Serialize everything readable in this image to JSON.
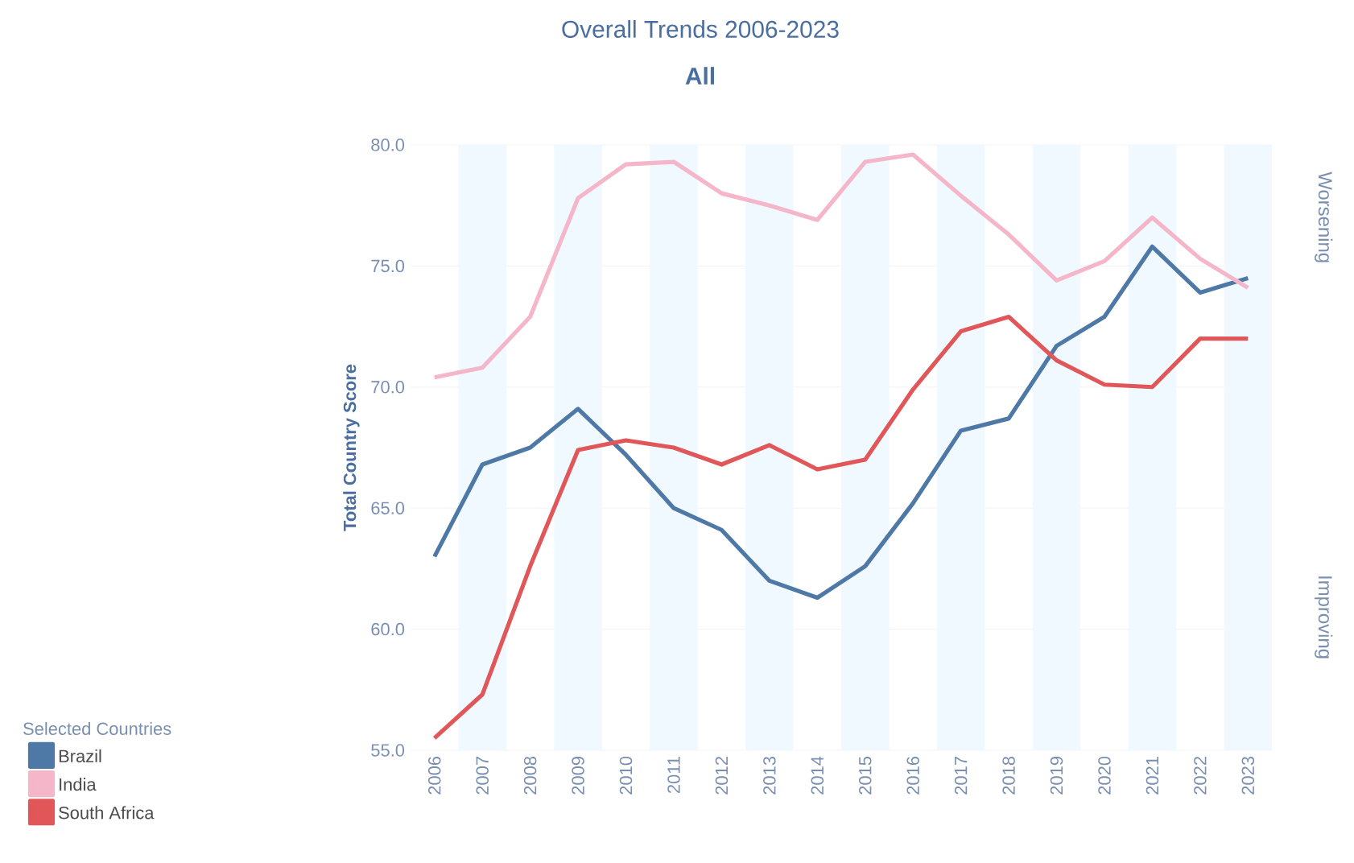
{
  "chart_data": {
    "type": "line",
    "title": "Overall Trends 2006-2023",
    "subtitle": "All",
    "ylabel": "Total Country Score",
    "legend_title": "Selected Countries",
    "categories": [
      "2006",
      "2007",
      "2008",
      "2009",
      "2010",
      "2011",
      "2012",
      "2013",
      "2014",
      "2015",
      "2016",
      "2017",
      "2018",
      "2019",
      "2020",
      "2021",
      "2022",
      "2023"
    ],
    "ylim": [
      55,
      80
    ],
    "yticks": [
      {
        "value": 55,
        "label": "55.0"
      },
      {
        "value": 60,
        "label": "60.0"
      },
      {
        "value": 65,
        "label": "65.0"
      },
      {
        "value": 70,
        "label": "70.0"
      },
      {
        "value": 75,
        "label": "75.0"
      },
      {
        "value": 80,
        "label": "80.0"
      }
    ],
    "grid": "y",
    "legend": "bottom left",
    "annotations": [
      "Worsening",
      "Improving"
    ],
    "series": [
      {
        "name": "Brazil",
        "color": "#4e79a7",
        "values": [
          63.0,
          66.8,
          67.5,
          69.1,
          67.2,
          65.0,
          64.1,
          62.0,
          61.3,
          62.6,
          65.2,
          68.2,
          68.7,
          71.7,
          72.9,
          75.8,
          73.9,
          74.5
        ]
      },
      {
        "name": "India",
        "color": "#f4b6c8",
        "values": [
          70.4,
          70.8,
          72.9,
          77.8,
          79.2,
          79.3,
          78.0,
          77.5,
          76.9,
          79.3,
          79.6,
          77.9,
          76.3,
          74.4,
          75.2,
          77.0,
          75.3,
          74.1
        ]
      },
      {
        "name": "South Africa",
        "color": "#e15759",
        "values": [
          55.5,
          57.3,
          62.6,
          67.4,
          67.8,
          67.5,
          66.8,
          67.6,
          66.6,
          67.0,
          69.9,
          72.3,
          72.9,
          71.1,
          70.1,
          70.0,
          72.0,
          72.0
        ]
      }
    ]
  }
}
